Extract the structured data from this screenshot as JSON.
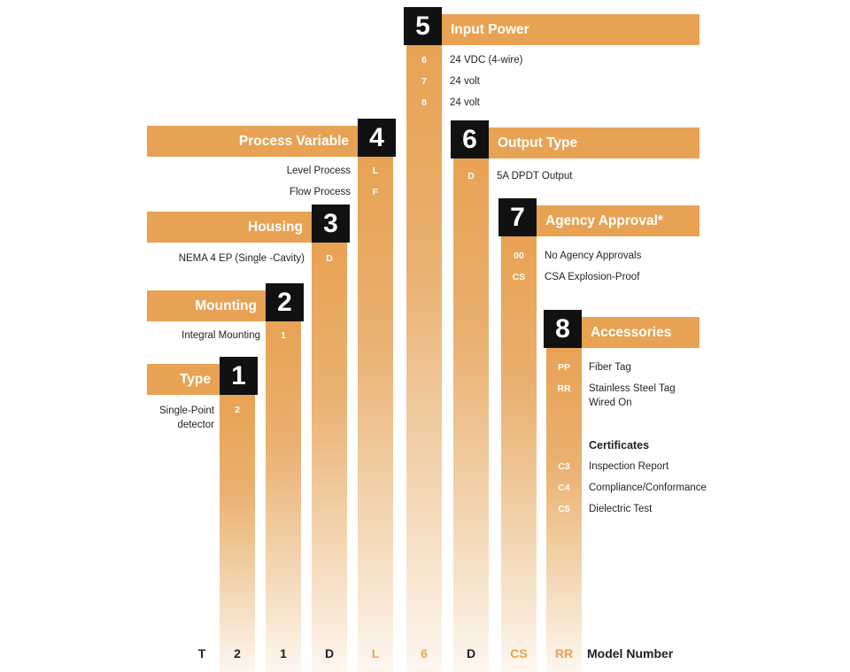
{
  "sections": [
    {
      "number": "1",
      "title": "Type",
      "options": [
        {
          "code": "2",
          "label": "Single-Point detector"
        }
      ]
    },
    {
      "number": "2",
      "title": "Mounting",
      "options": [
        {
          "code": "1",
          "label": "Integral Mounting"
        }
      ]
    },
    {
      "number": "3",
      "title": "Housing",
      "options": [
        {
          "code": "D",
          "label": "NEMA 4 EP (Single -Cavity)"
        }
      ]
    },
    {
      "number": "4",
      "title": "Process Variable",
      "options": [
        {
          "code": "L",
          "label": "Level Process"
        },
        {
          "code": "F",
          "label": "Flow Process"
        }
      ]
    },
    {
      "number": "5",
      "title": "Input Power",
      "options": [
        {
          "code": "6",
          "label": "24 VDC (4-wire)"
        },
        {
          "code": "7",
          "label": "24 volt"
        },
        {
          "code": "8",
          "label": "24 volt"
        }
      ]
    },
    {
      "number": "6",
      "title": "Output Type",
      "options": [
        {
          "code": "D",
          "label": "5A DPDT Output"
        }
      ]
    },
    {
      "number": "7",
      "title": "Agency Approval*",
      "options": [
        {
          "code": "00",
          "label": "No Agency Approvals"
        },
        {
          "code": "CS",
          "label": "CSA Explosion-Proof"
        }
      ]
    },
    {
      "number": "8",
      "title": "Accessories",
      "options": [
        {
          "code": "PP",
          "label": "Fiber Tag"
        },
        {
          "code": "RR",
          "label": "Stainless Steel Tag Wired On"
        }
      ],
      "subheading": "Certificates",
      "certificates": [
        {
          "code": "C3",
          "label": "Inspection Report"
        },
        {
          "code": "C4",
          "label": "Compliance/Conformance"
        },
        {
          "code": "C5",
          "label": "Dielectric Test"
        }
      ]
    }
  ],
  "model_number": {
    "codes": [
      "T",
      "2",
      "1",
      "D",
      "L",
      "6",
      "D",
      "CS",
      "RR"
    ],
    "label": "Model Number"
  },
  "colors": {
    "accent": "#e8a253",
    "box": "#111111",
    "text": "#231f20"
  }
}
